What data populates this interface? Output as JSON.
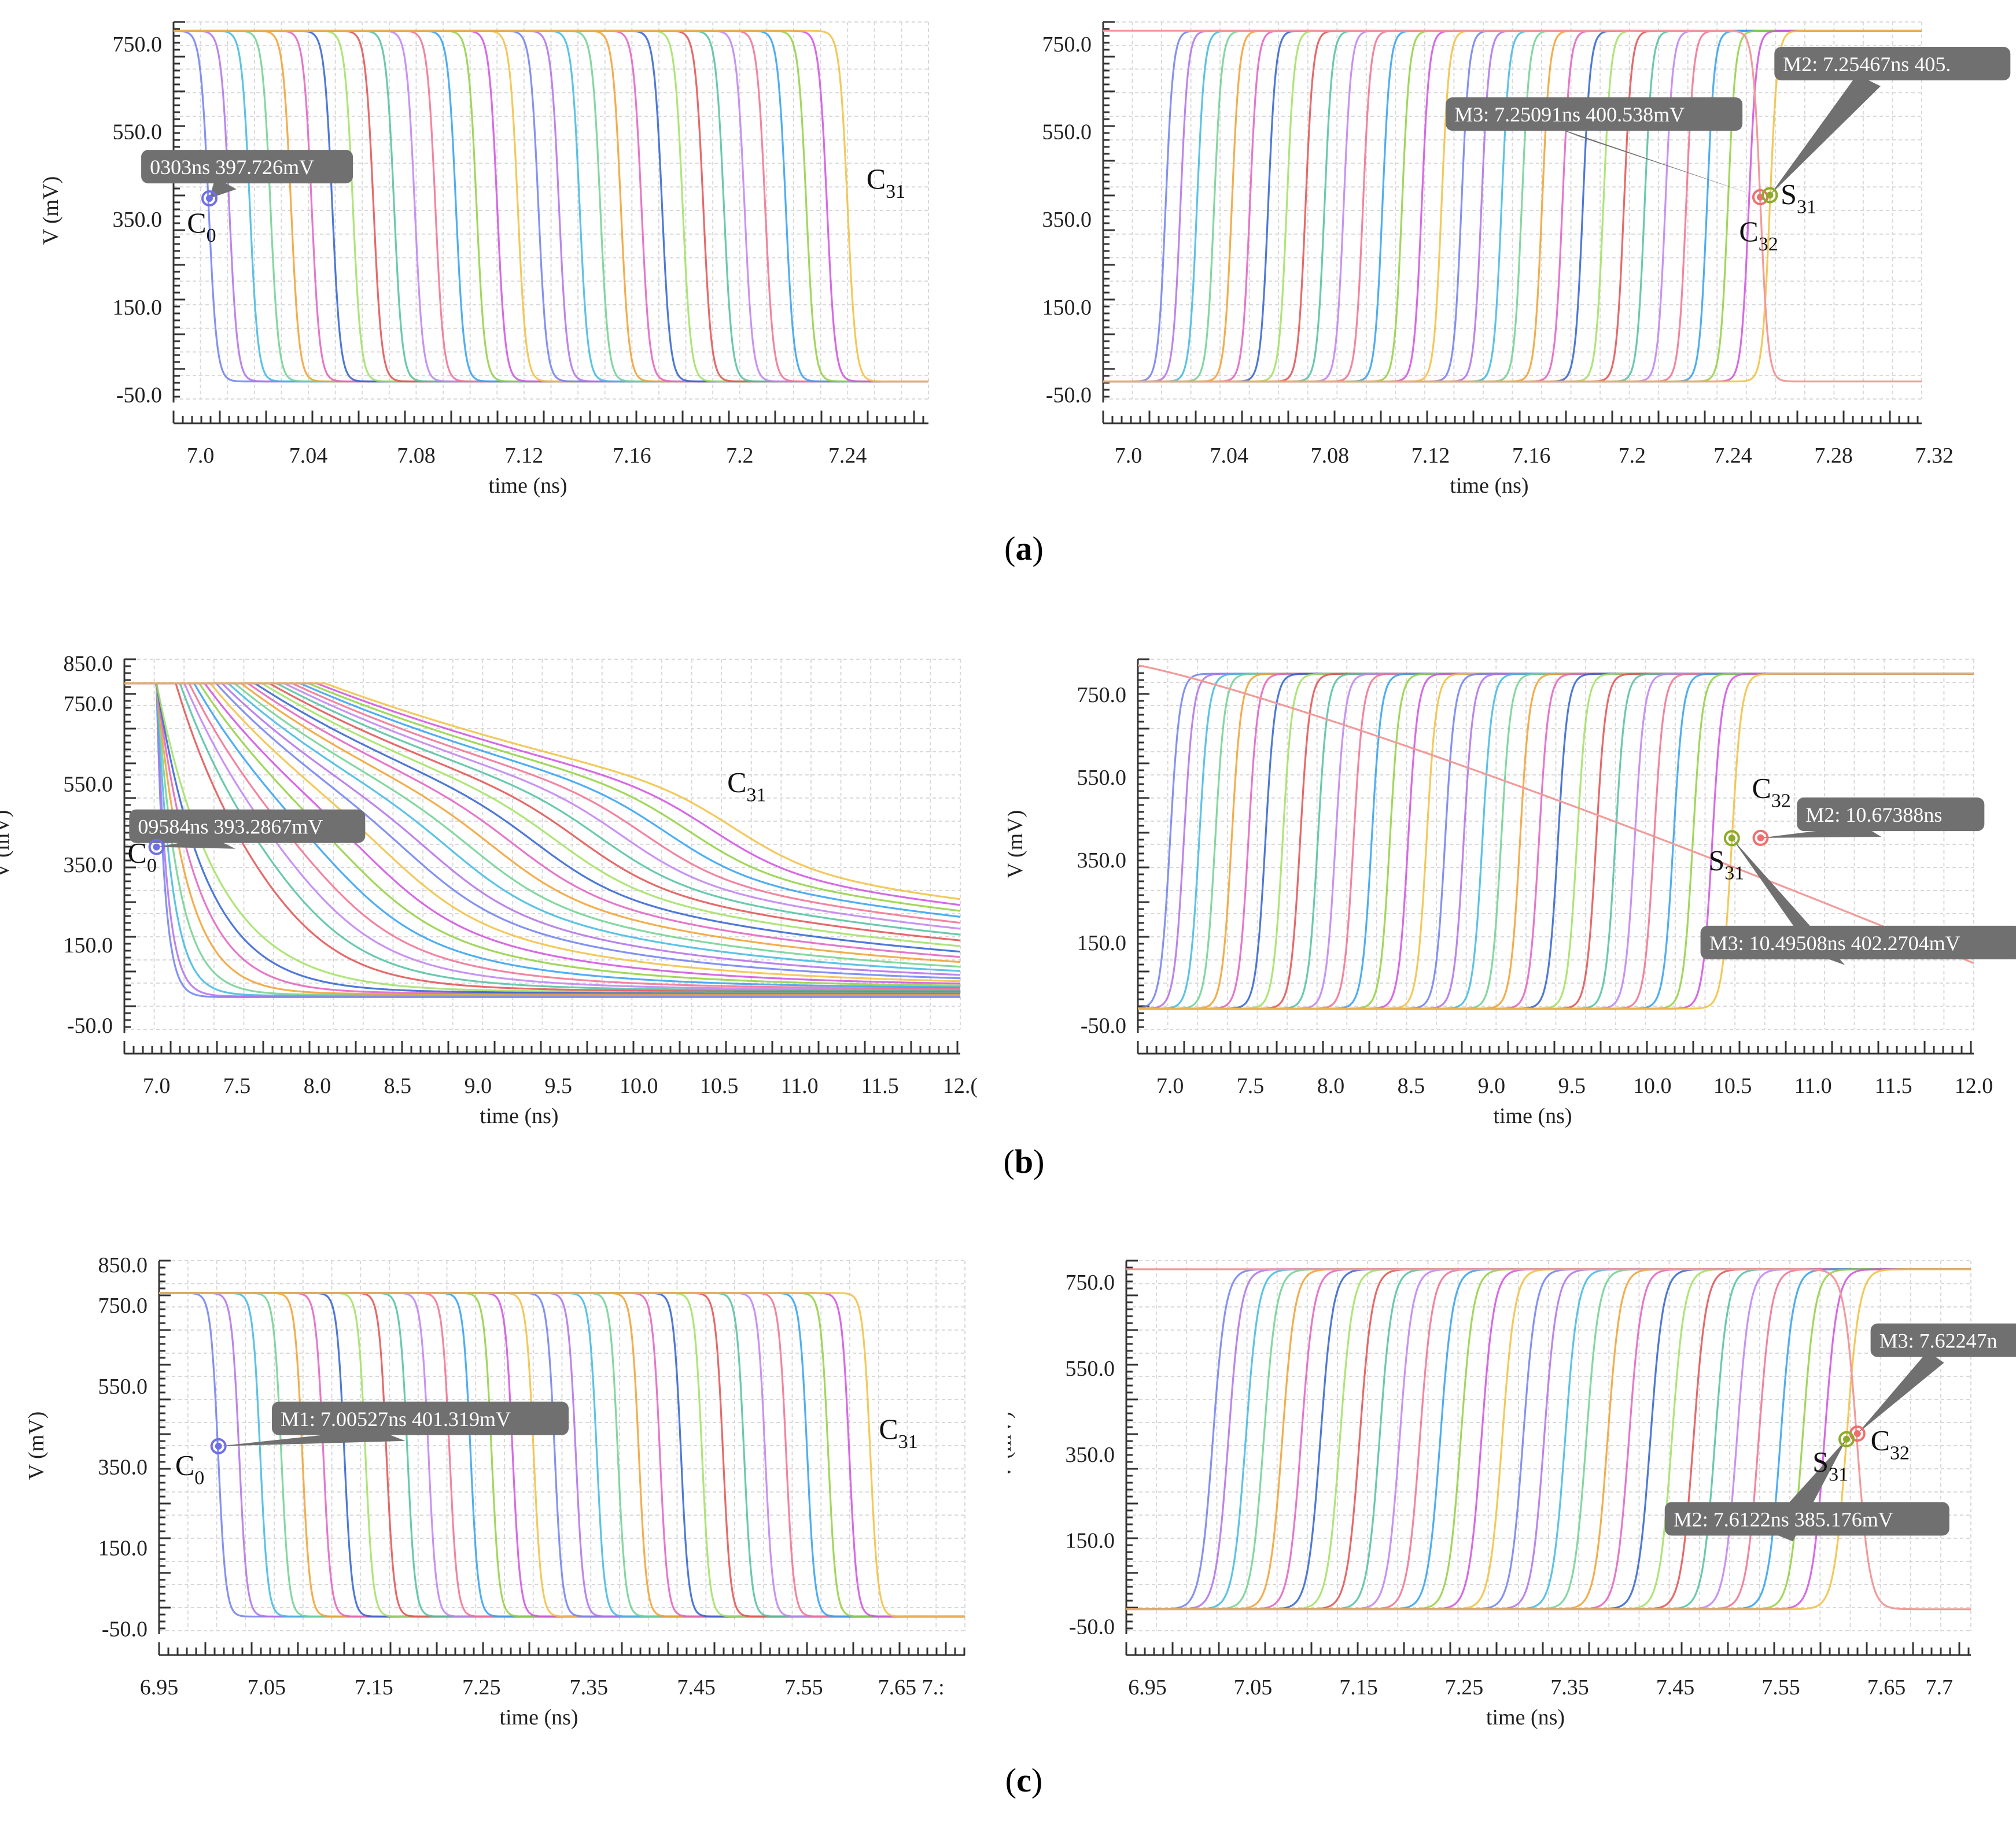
{
  "captions": [
    "a",
    "b",
    "c"
  ],
  "style": {
    "grid_color": "#d9d9d9",
    "marker_box_color": "#707070",
    "marker_text_color": "#ffffff",
    "curve_palette": [
      "#6f7ff0",
      "#b070e8",
      "#40b8e0",
      "#70d090",
      "#f0a030",
      "#e060c0",
      "#3060d0",
      "#a0e060",
      "#e05050",
      "#50c0a0",
      "#c080f0",
      "#f07090",
      "#30a0f0",
      "#90d040",
      "#d050e0",
      "#f0c040"
    ],
    "c0_marker_color": "#6f6fe8",
    "s31_marker_color": "#8cab2a",
    "c32_marker_color": "#ef6f6f"
  },
  "chart_data": [
    {
      "id": "a-left",
      "type": "line",
      "description_family": "falling_edges",
      "xlabel": "time (ns)",
      "ylabel": "V (mV)",
      "xlim": [
        6.99,
        7.27
      ],
      "ylim": [
        -60,
        800
      ],
      "xticks": [
        7.0,
        7.04,
        7.08,
        7.12,
        7.16,
        7.2,
        7.24
      ],
      "xtick_labels": [
        "7.0",
        "7.04",
        "7.08",
        "7.12",
        "7.16",
        "7.2",
        "7.24"
      ],
      "yticks": [
        -50,
        150,
        350,
        550,
        750
      ],
      "ytick_labels": [
        "-50.0",
        "150.0",
        "350.0",
        "550.0",
        "750.0"
      ],
      "high_level": 780,
      "low_level": -20,
      "series_count": 32,
      "first_edge_t": 7.003,
      "last_edge_t": 7.24,
      "edge_width": 0.003,
      "curve_labels": [
        {
          "text": "C",
          "sub": "0",
          "x": 6.995,
          "y": 320
        },
        {
          "text": "C",
          "sub": "31",
          "x": 7.247,
          "y": 420
        }
      ],
      "markers": [
        {
          "x": 7.0033,
          "y": 397.7,
          "color_key": "c0_marker_color",
          "label": "0303ns 397.726mV",
          "box_x": 6.978,
          "box_y": 470
        }
      ]
    },
    {
      "id": "a-right",
      "type": "line",
      "description_family": "rising_edges",
      "xlabel": "time (ns)",
      "ylabel": "V (mV)",
      "xlim": [
        6.99,
        7.315
      ],
      "ylim": [
        -60,
        800
      ],
      "xticks": [
        7.0,
        7.04,
        7.08,
        7.12,
        7.16,
        7.2,
        7.24,
        7.28,
        7.32
      ],
      "xtick_labels": [
        "7.0",
        "7.04",
        "7.08",
        "7.12",
        "7.16",
        "7.2",
        "7.24",
        "7.28",
        "7.32"
      ],
      "yticks": [
        -50,
        150,
        350,
        550,
        750
      ],
      "ytick_labels": [
        "-50.0",
        "150.0",
        "350.0",
        "550.0",
        "750.0"
      ],
      "high_level": 780,
      "low_level": -20,
      "series_count": 32,
      "first_edge_t": 7.0148,
      "last_edge_t": 7.2547,
      "edge_width": 0.003,
      "clock_fall_t": 7.251,
      "curve_labels": [
        {
          "text": "S",
          "sub": "31",
          "x": 7.259,
          "y": 385
        },
        {
          "text": "C",
          "sub": "32",
          "x": 7.2425,
          "y": 300
        }
      ],
      "markers": [
        {
          "x": 7.2509,
          "y": 400.5,
          "color_key": "c32_marker_color",
          "label": "M3: 7.25091ns 400.538mV",
          "box_x": 7.126,
          "box_y": 590
        },
        {
          "x": 7.2547,
          "y": 405,
          "color_key": "s31_marker_color",
          "label": "M2: 7.25467ns 405.",
          "box_x": 7.2565,
          "box_y": 705
        }
      ]
    },
    {
      "id": "b-left",
      "type": "line",
      "description_family": "slow_discharge",
      "xlabel": "time (ns)",
      "ylabel": "V (mV)",
      "xlim": [
        6.8,
        12.0
      ],
      "ylim": [
        -60,
        860
      ],
      "xticks": [
        7.0,
        7.5,
        8.0,
        8.5,
        9.0,
        9.5,
        10.0,
        10.5,
        11.0,
        11.5,
        12.0
      ],
      "xtick_labels": [
        "7.0",
        "7.5",
        "8.0",
        "8.5",
        "9.0",
        "9.5",
        "10.0",
        "10.5",
        "11.0",
        "11.5",
        "12.("
      ],
      "yticks": [
        -50,
        150,
        350,
        550,
        750,
        850
      ],
      "ytick_labels": [
        "-50.0",
        "150.0",
        "350.0",
        "550.0",
        "750.0",
        "850.0"
      ],
      "high_level": 800,
      "low_level": -20,
      "series_count": 32,
      "curve_labels": [
        {
          "text": "C",
          "sub": "0",
          "x": 6.82,
          "y": 355
        },
        {
          "text": "C",
          "sub": "31",
          "x": 10.55,
          "y": 530
        }
      ],
      "markers": [
        {
          "x": 7.0,
          "y": 393.3,
          "color_key": "c0_marker_color",
          "label": "09584ns 393.2867mV",
          "box_x": 6.83,
          "box_y": 445
        }
      ]
    },
    {
      "id": "b-right",
      "type": "line",
      "description_family": "rising_edges",
      "xlabel": "time (ns)",
      "ylabel": "V (mV)",
      "xlim": [
        6.8,
        12.0
      ],
      "ylim": [
        -60,
        835
      ],
      "xticks": [
        7.0,
        7.5,
        8.0,
        8.5,
        9.0,
        9.5,
        10.0,
        10.5,
        11.0,
        11.5,
        12.0
      ],
      "xtick_labels": [
        "7.0",
        "7.5",
        "8.0",
        "8.5",
        "9.0",
        "9.5",
        "10.0",
        "10.5",
        "11.0",
        "11.5",
        "12.0"
      ],
      "yticks": [
        -50,
        150,
        350,
        550,
        750
      ],
      "ytick_labels": [
        "-50.0",
        "150.0",
        "350.0",
        "550.0",
        "750.0"
      ],
      "high_level": 800,
      "low_level": -10,
      "series_count": 32,
      "first_edge_t": 7.0,
      "last_edge_t": 10.495,
      "edge_width": 0.06,
      "clock_fall_t": 10.67,
      "curve_labels": [
        {
          "text": "C",
          "sub": "32",
          "x": 10.62,
          "y": 500
        },
        {
          "text": "S",
          "sub": "31",
          "x": 10.35,
          "y": 325
        }
      ],
      "markers": [
        {
          "x": 10.674,
          "y": 403,
          "color_key": "c32_marker_color",
          "label": "M2: 10.67388ns",
          "box_x": 10.9,
          "box_y": 460
        },
        {
          "x": 10.495,
          "y": 402.3,
          "color_key": "s31_marker_color",
          "label": "M3: 10.49508ns 402.2704mV",
          "box_x": 10.3,
          "box_y": 150
        }
      ]
    },
    {
      "id": "c-left",
      "type": "line",
      "description_family": "falling_edges",
      "xlabel": "time (ns)",
      "ylabel": "V (mV)",
      "xlim": [
        6.95,
        7.7
      ],
      "ylim": [
        -55,
        860
      ],
      "xticks": [
        6.95,
        7.05,
        7.15,
        7.25,
        7.35,
        7.45,
        7.55,
        7.65
      ],
      "xtick_labels": [
        "6.95",
        "7.05",
        "7.15",
        "7.25",
        "7.35",
        "7.45",
        "7.55",
        "7.65 7.:"
      ],
      "yticks": [
        -50,
        150,
        350,
        550,
        750,
        850
      ],
      "ytick_labels": [
        "-50.0",
        "150.0",
        "350.0",
        "550.0",
        "750.0",
        "850.0"
      ],
      "high_level": 780,
      "low_level": -20,
      "series_count": 32,
      "first_edge_t": 7.005,
      "last_edge_t": 7.612,
      "edge_width": 0.007,
      "curve_labels": [
        {
          "text": "C",
          "sub": "0",
          "x": 6.965,
          "y": 330
        },
        {
          "text": "C",
          "sub": "31",
          "x": 7.62,
          "y": 420
        }
      ],
      "markers": [
        {
          "x": 7.0053,
          "y": 401.3,
          "color_key": "c0_marker_color",
          "label": "M1: 7.00527ns 401.319mV",
          "box_x": 7.055,
          "box_y": 470
        }
      ]
    },
    {
      "id": "c-right",
      "type": "line",
      "description_family": "rising_edges",
      "xlabel": "time (ns)",
      "ylabel": "V (mV)",
      "xlim": [
        6.93,
        7.73
      ],
      "ylim": [
        -60,
        800
      ],
      "xticks": [
        6.95,
        7.05,
        7.15,
        7.25,
        7.35,
        7.45,
        7.55,
        7.65,
        7.7
      ],
      "xtick_labels": [
        "6.95",
        "7.05",
        "7.15",
        "7.25",
        "7.35",
        "7.45",
        "7.55",
        "7.65",
        "7.7"
      ],
      "yticks": [
        -50,
        150,
        350,
        550,
        750
      ],
      "ytick_labels": [
        "-50.0",
        "150.0",
        "350.0",
        "550.0",
        "750.0"
      ],
      "high_level": 780,
      "low_level": -10,
      "series_count": 32,
      "first_edge_t": 7.012,
      "last_edge_t": 7.6122,
      "edge_width": 0.012,
      "clock_fall_t": 7.622,
      "curve_labels": [
        {
          "text": "S",
          "sub": "31",
          "x": 7.58,
          "y": 310
        },
        {
          "text": "C",
          "sub": "32",
          "x": 7.635,
          "y": 360
        }
      ],
      "markers": [
        {
          "x": 7.6225,
          "y": 398,
          "color_key": "c32_marker_color",
          "label": "M3: 7.62247n",
          "box_x": 7.635,
          "box_y": 615
        },
        {
          "x": 7.6122,
          "y": 385.2,
          "color_key": "s31_marker_color",
          "label": "M2: 7.6122ns 385.176mV",
          "box_x": 7.44,
          "box_y": 200
        }
      ]
    }
  ]
}
